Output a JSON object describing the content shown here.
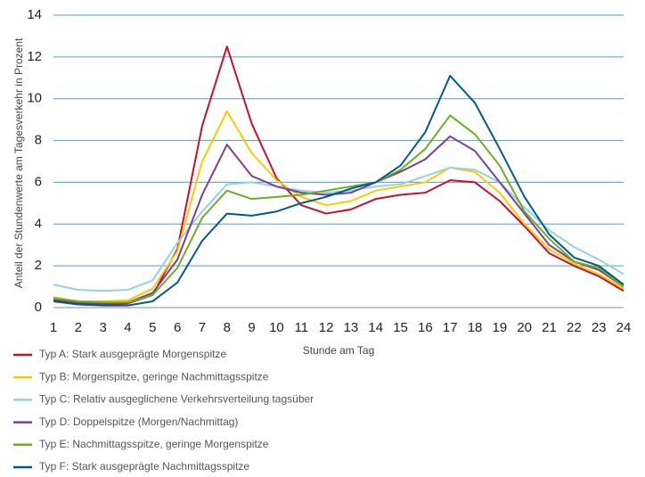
{
  "chart_data": {
    "type": "line",
    "xlabel": "Stunde am Tag",
    "ylabel": "Anteil der Stundenwerte am Tagesverkehr in Prozent",
    "x": [
      1,
      2,
      3,
      4,
      5,
      6,
      7,
      8,
      9,
      10,
      11,
      12,
      13,
      14,
      15,
      16,
      17,
      18,
      19,
      20,
      21,
      22,
      23,
      24
    ],
    "xlim": [
      1,
      24
    ],
    "xticks": [
      1,
      2,
      3,
      4,
      5,
      6,
      7,
      8,
      9,
      10,
      11,
      12,
      13,
      14,
      15,
      16,
      17,
      18,
      19,
      20,
      21,
      22,
      23,
      24
    ],
    "ylim": [
      0,
      14
    ],
    "yticks": [
      0,
      2,
      4,
      6,
      8,
      10,
      12,
      14
    ],
    "grid": true,
    "legend": "bottom",
    "series": [
      {
        "name": "Typ A: Stark ausgeprägte Morgenspitze",
        "color": "#c8102e",
        "values": [
          0.35,
          0.2,
          0.15,
          0.2,
          0.6,
          2.8,
          8.7,
          12.5,
          8.8,
          6.2,
          4.9,
          4.5,
          4.7,
          5.2,
          5.4,
          5.5,
          6.1,
          6.0,
          5.1,
          3.9,
          2.6,
          2.0,
          1.5,
          0.8
        ]
      },
      {
        "name": "Typ B: Morgenspitze, geringe Nachmittagsspitze",
        "color": "#ffc800",
        "values": [
          0.5,
          0.3,
          0.3,
          0.35,
          0.9,
          2.7,
          7.0,
          9.4,
          7.4,
          6.1,
          5.3,
          4.9,
          5.1,
          5.6,
          5.8,
          6.0,
          6.7,
          6.5,
          5.5,
          4.0,
          2.8,
          2.1,
          1.6,
          0.9
        ]
      },
      {
        "name": "Typ C: Relativ ausgeglichene Verkehrsverteilung tagsüber",
        "color": "#92d2e2",
        "values": [
          1.1,
          0.85,
          0.8,
          0.85,
          1.3,
          3.1,
          4.6,
          5.9,
          6.0,
          5.8,
          5.6,
          5.5,
          5.6,
          5.8,
          5.9,
          6.3,
          6.7,
          6.6,
          6.0,
          4.8,
          3.7,
          2.9,
          2.3,
          1.6
        ]
      },
      {
        "name": "Typ D: Doppelspitze (Morgen/Nachmittag)",
        "color": "#7b3f98",
        "values": [
          0.4,
          0.25,
          0.2,
          0.25,
          0.7,
          2.3,
          5.4,
          7.8,
          6.3,
          5.8,
          5.5,
          5.4,
          5.5,
          6.0,
          6.5,
          7.1,
          8.2,
          7.5,
          6.0,
          4.5,
          3.0,
          2.2,
          1.8,
          1.0
        ]
      },
      {
        "name": "Typ E: Nachmittagsspitze, geringe Morgenspitze",
        "color": "#6ab023",
        "values": [
          0.45,
          0.3,
          0.25,
          0.25,
          0.6,
          1.9,
          4.3,
          5.6,
          5.2,
          5.3,
          5.4,
          5.6,
          5.8,
          6.0,
          6.6,
          7.6,
          9.2,
          8.3,
          6.8,
          4.6,
          3.3,
          2.2,
          1.9,
          1.0
        ]
      },
      {
        "name": "Typ F: Stark ausgeprägte Nachmittagsspitze",
        "color": "#005b8c",
        "values": [
          0.3,
          0.15,
          0.1,
          0.1,
          0.3,
          1.2,
          3.2,
          4.5,
          4.4,
          4.6,
          5.0,
          5.3,
          5.7,
          6.0,
          6.8,
          8.4,
          11.1,
          9.8,
          7.6,
          5.3,
          3.5,
          2.4,
          2.0,
          1.1
        ]
      }
    ]
  }
}
